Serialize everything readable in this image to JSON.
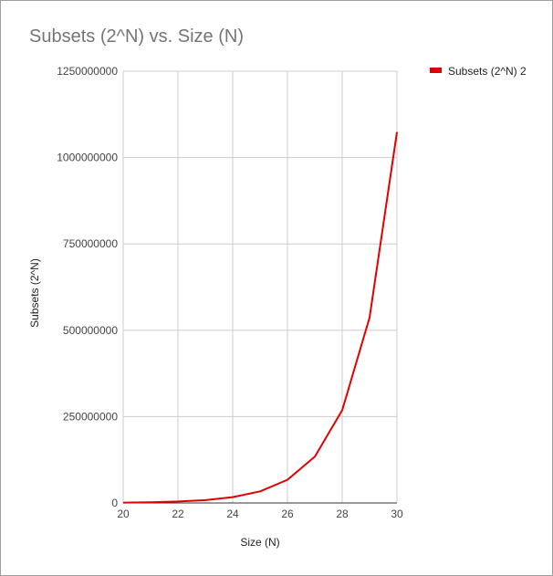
{
  "chart_data": {
    "type": "line",
    "title": "Subsets (2^N) vs. Size (N)",
    "xlabel": "Size (N)",
    "ylabel": "Subsets (2^N)",
    "xlim": [
      20,
      30
    ],
    "ylim": [
      0,
      1250000000
    ],
    "x_ticks": [
      20,
      22,
      24,
      26,
      28,
      30
    ],
    "y_ticks": [
      0,
      250000000,
      500000000,
      750000000,
      1000000000,
      1250000000
    ],
    "x_tick_labels": [
      "20",
      "22",
      "24",
      "26",
      "28",
      "30"
    ],
    "y_tick_labels": [
      "0",
      "250000000",
      "500000000",
      "750000000",
      "1000000000",
      "1250000000"
    ],
    "grid": true,
    "legend_position": "right",
    "series": [
      {
        "name": "Subsets (2^N) 2",
        "color": "#e00000",
        "x": [
          20,
          21,
          22,
          23,
          24,
          25,
          26,
          27,
          28,
          29,
          30
        ],
        "y": [
          1048576,
          2097152,
          4194304,
          8388608,
          16777216,
          33554432,
          67108864,
          134217728,
          268435456,
          536870912,
          1073741824
        ]
      }
    ]
  }
}
